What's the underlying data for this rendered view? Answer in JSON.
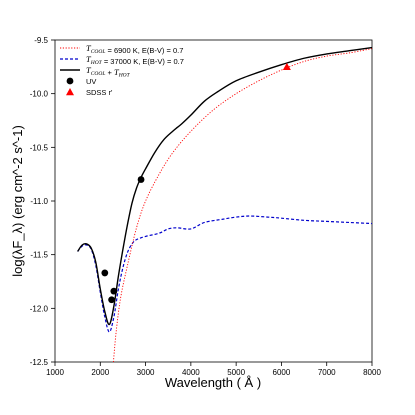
{
  "chart_data": {
    "type": "line",
    "title": "",
    "xlabel": "Wavelength ( Å )",
    "ylabel": "log(λF_λ) (erg cm^-2 s^-1)",
    "xlim": [
      1000,
      8000
    ],
    "ylim": [
      -12.5,
      -9.5
    ],
    "x_ticks": [
      "1000",
      "2000",
      "3000",
      "4000",
      "5000",
      "6000",
      "7000",
      "8000"
    ],
    "y_ticks": [
      "-9.5",
      "-10.0",
      "-10.5",
      "-11.0",
      "-11.5",
      "-12.0",
      "-12.5"
    ],
    "legend_position": "top-left",
    "series": [
      {
        "name": "T_COOL = 6900 K, E(B-V) = 0.7",
        "legend_parts": [
          "T",
          "COOL",
          " = 6900 K, E(B-V) = 0.7"
        ],
        "style": "dotted",
        "color": "#ff0000",
        "x": [
          2290,
          2350,
          2450,
          2600,
          2800,
          3000,
          3300,
          3600,
          4000,
          4500,
          5000,
          5500,
          6000,
          6500,
          7000,
          7500,
          8000
        ],
        "y": [
          -12.5,
          -12.22,
          -11.9,
          -11.6,
          -11.25,
          -11.0,
          -10.75,
          -10.55,
          -10.35,
          -10.15,
          -10.0,
          -9.88,
          -9.78,
          -9.7,
          -9.65,
          -9.62,
          -9.58
        ]
      },
      {
        "name": "T_HOT = 37000 K, E(B-V) = 0.7",
        "legend_parts": [
          "T",
          "HOT",
          " = 37000 K, E(B-V) = 0.7"
        ],
        "style": "dashed",
        "color": "#0000cc",
        "x": [
          1500,
          1600,
          1700,
          1800,
          1900,
          2000,
          2100,
          2200,
          2300,
          2400,
          2500,
          2600,
          2700,
          2800,
          3000,
          3300,
          3500,
          3700,
          4000,
          4300,
          4700,
          5000,
          5300,
          5700,
          6000,
          6500,
          7000,
          7500,
          8000
        ],
        "y": [
          -11.47,
          -11.42,
          -11.41,
          -11.45,
          -11.6,
          -11.85,
          -12.08,
          -12.22,
          -12.08,
          -11.82,
          -11.62,
          -11.48,
          -11.4,
          -11.36,
          -11.33,
          -11.3,
          -11.26,
          -11.25,
          -11.26,
          -11.2,
          -11.17,
          -11.15,
          -11.14,
          -11.15,
          -11.16,
          -11.18,
          -11.19,
          -11.2,
          -11.21
        ]
      },
      {
        "name": "T_COOL + T_HOT",
        "legend_parts": [
          "T",
          "COOL",
          " + ",
          "T",
          "HOT"
        ],
        "style": "solid",
        "color": "#000000",
        "x": [
          1500,
          1600,
          1700,
          1800,
          1900,
          2000,
          2100,
          2200,
          2300,
          2400,
          2500,
          2600,
          2700,
          2800,
          2900,
          3000,
          3200,
          3400,
          3600,
          3800,
          4000,
          4300,
          4600,
          5000,
          5500,
          6000,
          6500,
          7000,
          7500,
          8000
        ],
        "y": [
          -11.47,
          -11.41,
          -11.4,
          -11.44,
          -11.57,
          -11.82,
          -12.03,
          -12.15,
          -11.98,
          -11.7,
          -11.45,
          -11.22,
          -11.02,
          -10.88,
          -10.78,
          -10.7,
          -10.55,
          -10.43,
          -10.35,
          -10.28,
          -10.2,
          -10.07,
          -9.98,
          -9.88,
          -9.8,
          -9.73,
          -9.67,
          -9.63,
          -9.6,
          -9.57
        ]
      }
    ],
    "points": [
      {
        "name": "UV",
        "marker": "circle",
        "color": "#000000",
        "x": [
          2100,
          2250,
          2300,
          2900
        ],
        "y": [
          -11.67,
          -11.92,
          -11.84,
          -10.8
        ]
      },
      {
        "name": "SDSS r'",
        "marker": "triangle",
        "color": "#ff0000",
        "x": [
          6120
        ],
        "y": [
          -9.75
        ]
      }
    ]
  }
}
